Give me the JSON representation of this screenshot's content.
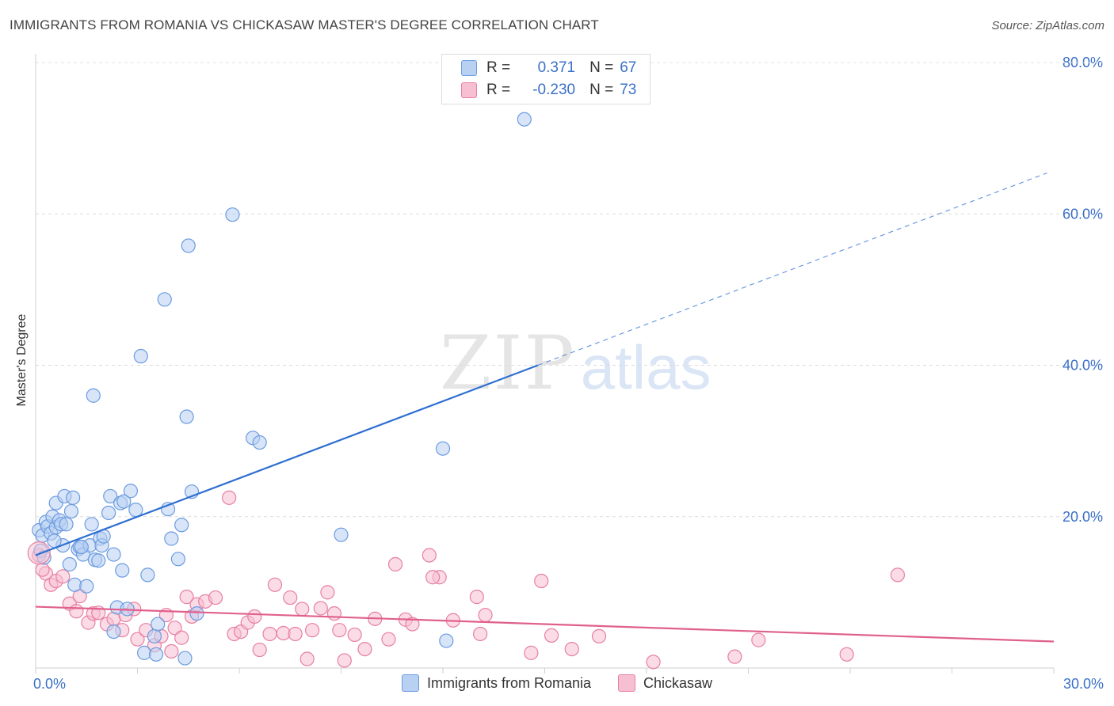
{
  "title": "IMMIGRANTS FROM ROMANIA VS CHICKASAW MASTER'S DEGREE CORRELATION CHART",
  "source": "Source: ZipAtlas.com",
  "watermark": {
    "zip": "ZIP",
    "atlas": "atlas"
  },
  "colors": {
    "blue": "#6b9be0",
    "blue_fill": "#b8d0f2",
    "blue_line": "#2e6fd1",
    "pink": "#e77fa1",
    "pink_fill": "#f7c0d2",
    "pink_line": "#e0608c",
    "axis_text": "#3a70c8"
  },
  "stats": {
    "blue": {
      "r_label": "R =",
      "r_value": "0.371",
      "n_label": "N =",
      "n_value": "67"
    },
    "pink": {
      "r_label": "R =",
      "r_value": "-0.230",
      "n_label": "N =",
      "n_value": "73"
    }
  },
  "legend": {
    "blue": "Immigrants from Romania",
    "pink": "Chickasaw"
  },
  "chart_data": {
    "type": "scatter",
    "title": "IMMIGRANTS FROM ROMANIA VS CHICKASAW MASTER'S DEGREE CORRELATION CHART",
    "xlabel": "",
    "ylabel": "Master's Degree",
    "xlim": [
      0,
      30
    ],
    "ylim": [
      0,
      85
    ],
    "x_tick_labels": [
      "0.0%",
      "30.0%"
    ],
    "y_ticks": [
      20,
      40,
      60,
      80
    ],
    "y_tick_labels": [
      "20.0%",
      "40.0%",
      "60.0%",
      "80.0%"
    ],
    "grid": true,
    "legend_position": "bottom",
    "series": [
      {
        "name": "Immigrants from Romania",
        "points": [
          [
            0.1,
            18.2
          ],
          [
            0.2,
            17.5
          ],
          [
            0.3,
            19.3
          ],
          [
            0.35,
            18.7
          ],
          [
            0.45,
            17.8
          ],
          [
            0.5,
            20.0
          ],
          [
            0.6,
            21.8
          ],
          [
            0.6,
            18.6
          ],
          [
            0.7,
            19.5
          ],
          [
            0.75,
            19.0
          ],
          [
            0.8,
            16.2
          ],
          [
            0.85,
            22.7
          ],
          [
            0.9,
            19.0
          ],
          [
            1.0,
            13.7
          ],
          [
            1.05,
            20.7
          ],
          [
            1.1,
            22.5
          ],
          [
            1.15,
            11.0
          ],
          [
            1.25,
            15.7
          ],
          [
            1.3,
            16.0
          ],
          [
            1.4,
            15.0
          ],
          [
            1.5,
            10.8
          ],
          [
            1.6,
            16.2
          ],
          [
            1.65,
            19.0
          ],
          [
            1.7,
            36.0
          ],
          [
            1.75,
            14.3
          ],
          [
            1.85,
            14.2
          ],
          [
            1.9,
            17.1
          ],
          [
            1.95,
            16.2
          ],
          [
            2.0,
            17.4
          ],
          [
            2.15,
            20.5
          ],
          [
            2.2,
            22.7
          ],
          [
            2.3,
            15.0
          ],
          [
            2.4,
            8.0
          ],
          [
            2.5,
            21.8
          ],
          [
            2.55,
            12.9
          ],
          [
            2.6,
            22.0
          ],
          [
            2.7,
            7.8
          ],
          [
            2.8,
            23.4
          ],
          [
            2.95,
            20.9
          ],
          [
            3.1,
            41.2
          ],
          [
            3.2,
            2.0
          ],
          [
            3.3,
            12.3
          ],
          [
            3.5,
            4.2
          ],
          [
            3.55,
            1.8
          ],
          [
            3.8,
            48.7
          ],
          [
            3.9,
            21.0
          ],
          [
            4.0,
            17.1
          ],
          [
            4.2,
            14.4
          ],
          [
            4.3,
            18.9
          ],
          [
            4.4,
            1.3
          ],
          [
            4.45,
            33.2
          ],
          [
            4.5,
            55.8
          ],
          [
            4.6,
            23.3
          ],
          [
            4.75,
            7.2
          ],
          [
            5.8,
            59.9
          ],
          [
            6.4,
            30.4
          ],
          [
            6.6,
            29.8
          ],
          [
            9.0,
            17.6
          ],
          [
            12.0,
            29.0
          ],
          [
            12.1,
            3.6
          ],
          [
            14.4,
            72.5
          ],
          [
            0.15,
            15.5
          ],
          [
            0.25,
            14.6
          ],
          [
            0.55,
            16.8
          ],
          [
            1.35,
            16.0
          ],
          [
            3.6,
            5.8
          ],
          [
            2.3,
            4.8
          ]
        ],
        "trend": {
          "x_start": 0,
          "y_start": 14.9,
          "x_solid_end": 14.8,
          "y_solid_end": 40.0,
          "x_dashed_end": 29.8,
          "y_dashed_end": 65.4
        }
      },
      {
        "name": "Chickasaw",
        "points": [
          [
            0.1,
            14.9
          ],
          [
            0.3,
            12.5
          ],
          [
            0.45,
            11.0
          ],
          [
            0.6,
            11.5
          ],
          [
            0.8,
            12.1
          ],
          [
            1.0,
            8.5
          ],
          [
            1.2,
            7.5
          ],
          [
            1.3,
            9.5
          ],
          [
            1.55,
            6.0
          ],
          [
            1.7,
            7.2
          ],
          [
            1.85,
            7.3
          ],
          [
            2.1,
            5.8
          ],
          [
            2.3,
            6.5
          ],
          [
            2.55,
            5.0
          ],
          [
            2.65,
            7.0
          ],
          [
            2.9,
            7.8
          ],
          [
            3.0,
            3.8
          ],
          [
            3.25,
            5.0
          ],
          [
            3.5,
            3.0
          ],
          [
            3.7,
            4.2
          ],
          [
            3.85,
            7.0
          ],
          [
            4.0,
            2.2
          ],
          [
            4.1,
            5.3
          ],
          [
            4.3,
            4.0
          ],
          [
            4.45,
            9.4
          ],
          [
            4.6,
            6.8
          ],
          [
            4.75,
            8.4
          ],
          [
            5.0,
            8.8
          ],
          [
            5.3,
            9.3
          ],
          [
            5.7,
            22.5
          ],
          [
            5.85,
            4.5
          ],
          [
            6.05,
            4.8
          ],
          [
            6.25,
            6.0
          ],
          [
            6.45,
            6.8
          ],
          [
            6.6,
            2.4
          ],
          [
            6.9,
            4.5
          ],
          [
            7.05,
            11.0
          ],
          [
            7.3,
            4.6
          ],
          [
            7.5,
            9.3
          ],
          [
            7.65,
            4.5
          ],
          [
            7.85,
            7.8
          ],
          [
            8.0,
            1.2
          ],
          [
            8.15,
            5.0
          ],
          [
            8.4,
            7.9
          ],
          [
            8.6,
            10.0
          ],
          [
            8.8,
            7.2
          ],
          [
            8.95,
            5.0
          ],
          [
            9.1,
            1.0
          ],
          [
            9.4,
            4.4
          ],
          [
            9.7,
            2.5
          ],
          [
            10.0,
            6.5
          ],
          [
            10.4,
            3.8
          ],
          [
            10.6,
            13.7
          ],
          [
            10.9,
            6.4
          ],
          [
            11.1,
            5.8
          ],
          [
            11.6,
            14.9
          ],
          [
            11.9,
            12.0
          ],
          [
            12.3,
            6.3
          ],
          [
            13.0,
            9.4
          ],
          [
            13.1,
            4.5
          ],
          [
            13.25,
            7.0
          ],
          [
            14.6,
            2.0
          ],
          [
            14.9,
            11.5
          ],
          [
            15.2,
            4.3
          ],
          [
            15.8,
            2.5
          ],
          [
            16.6,
            4.2
          ],
          [
            18.2,
            0.8
          ],
          [
            20.6,
            1.5
          ],
          [
            21.3,
            3.7
          ],
          [
            23.9,
            1.8
          ],
          [
            25.4,
            12.3
          ],
          [
            11.7,
            12.0
          ],
          [
            0.2,
            13.0
          ]
        ],
        "trend": {
          "x_start": 0,
          "y_start": 8.1,
          "x_end": 30,
          "y_end": 3.5
        }
      }
    ]
  }
}
